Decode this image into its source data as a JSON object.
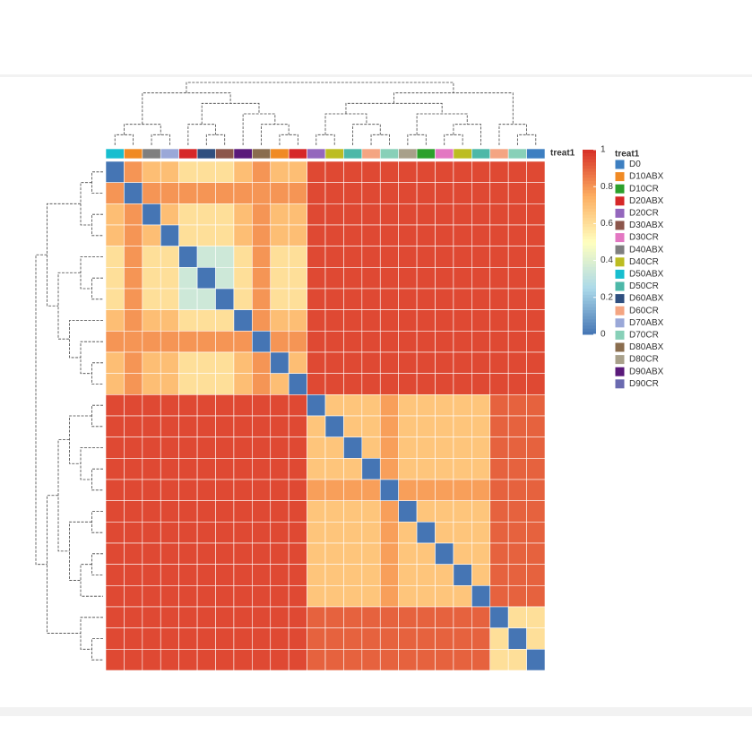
{
  "chart_data": {
    "type": "heatmap",
    "annotation_label": "treat1",
    "legend": {
      "title": "treat1",
      "items": [
        {
          "name": "D0",
          "color": "#3d7fc1"
        },
        {
          "name": "D10ABX",
          "color": "#f08a24"
        },
        {
          "name": "D10CR",
          "color": "#2ca02c"
        },
        {
          "name": "D20ABX",
          "color": "#d62728"
        },
        {
          "name": "D20CR",
          "color": "#9467bd"
        },
        {
          "name": "D30ABX",
          "color": "#8c564b"
        },
        {
          "name": "D30CR",
          "color": "#e377c2"
        },
        {
          "name": "D40ABX",
          "color": "#7f7f7f"
        },
        {
          "name": "D40CR",
          "color": "#bcbd22"
        },
        {
          "name": "D50ABX",
          "color": "#17becf"
        },
        {
          "name": "D50CR",
          "color": "#4db8a8"
        },
        {
          "name": "D60ABX",
          "color": "#2f4f7f"
        },
        {
          "name": "D60CR",
          "color": "#f4a582"
        },
        {
          "name": "D70ABX",
          "color": "#9aa8d8"
        },
        {
          "name": "D70CR",
          "color": "#88d0b8"
        },
        {
          "name": "D80ABX",
          "color": "#8a6d4e"
        },
        {
          "name": "D80CR",
          "color": "#a8a08a"
        },
        {
          "name": "D90ABX",
          "color": "#5a1a7a"
        },
        {
          "name": "D90CR",
          "color": "#6a6ab0"
        }
      ]
    },
    "annotation_groups": [
      9,
      1,
      7,
      13,
      3,
      11,
      5,
      17,
      15,
      1,
      3,
      4,
      8,
      10,
      12,
      14,
      16,
      2,
      6,
      8,
      10,
      12,
      14,
      0
    ],
    "zlim": [
      0,
      1
    ],
    "zticks": [
      0,
      0.2,
      0.4,
      0.6,
      0.8,
      1
    ],
    "colorscale": [
      [
        0,
        "#4575b4"
      ],
      [
        0.25,
        "#abd9e9"
      ],
      [
        0.5,
        "#ffffbf"
      ],
      [
        0.75,
        "#fdae61"
      ],
      [
        1,
        "#d73027"
      ]
    ],
    "values": [
      [
        0,
        0.8,
        0.7,
        0.7,
        0.6,
        0.6,
        0.6,
        0.7,
        0.8,
        0.7,
        0.7,
        0.95,
        0.95,
        0.95,
        0.95,
        0.95,
        0.95,
        0.95,
        0.95,
        0.95,
        0.95,
        0.95,
        0.95,
        0.95
      ],
      [
        0.8,
        0,
        0.8,
        0.8,
        0.8,
        0.8,
        0.8,
        0.8,
        0.8,
        0.8,
        0.8,
        0.95,
        0.95,
        0.95,
        0.95,
        0.95,
        0.95,
        0.95,
        0.95,
        0.95,
        0.95,
        0.95,
        0.95,
        0.95
      ],
      [
        0.7,
        0.8,
        0,
        0.7,
        0.6,
        0.6,
        0.6,
        0.7,
        0.8,
        0.7,
        0.7,
        0.95,
        0.95,
        0.95,
        0.95,
        0.95,
        0.95,
        0.95,
        0.95,
        0.95,
        0.95,
        0.95,
        0.95,
        0.95
      ],
      [
        0.7,
        0.8,
        0.7,
        0,
        0.6,
        0.6,
        0.6,
        0.7,
        0.8,
        0.7,
        0.7,
        0.95,
        0.95,
        0.95,
        0.95,
        0.95,
        0.95,
        0.95,
        0.95,
        0.95,
        0.95,
        0.95,
        0.95,
        0.95
      ],
      [
        0.6,
        0.8,
        0.6,
        0.6,
        0,
        0.35,
        0.35,
        0.6,
        0.8,
        0.6,
        0.6,
        0.95,
        0.95,
        0.95,
        0.95,
        0.95,
        0.95,
        0.95,
        0.95,
        0.95,
        0.95,
        0.95,
        0.95,
        0.95
      ],
      [
        0.6,
        0.8,
        0.6,
        0.6,
        0.35,
        0,
        0.35,
        0.6,
        0.8,
        0.6,
        0.6,
        0.95,
        0.95,
        0.95,
        0.95,
        0.95,
        0.95,
        0.95,
        0.95,
        0.95,
        0.95,
        0.95,
        0.95,
        0.95
      ],
      [
        0.6,
        0.8,
        0.6,
        0.6,
        0.35,
        0.35,
        0,
        0.6,
        0.8,
        0.6,
        0.6,
        0.95,
        0.95,
        0.95,
        0.95,
        0.95,
        0.95,
        0.95,
        0.95,
        0.95,
        0.95,
        0.95,
        0.95,
        0.95
      ],
      [
        0.7,
        0.8,
        0.7,
        0.7,
        0.6,
        0.6,
        0.6,
        0,
        0.8,
        0.7,
        0.7,
        0.95,
        0.95,
        0.95,
        0.95,
        0.95,
        0.95,
        0.95,
        0.95,
        0.95,
        0.95,
        0.95,
        0.95,
        0.95
      ],
      [
        0.8,
        0.8,
        0.8,
        0.8,
        0.8,
        0.8,
        0.8,
        0.8,
        0,
        0.8,
        0.8,
        0.95,
        0.95,
        0.95,
        0.95,
        0.95,
        0.95,
        0.95,
        0.95,
        0.95,
        0.95,
        0.95,
        0.95,
        0.95
      ],
      [
        0.7,
        0.8,
        0.7,
        0.7,
        0.6,
        0.6,
        0.6,
        0.7,
        0.8,
        0,
        0.7,
        0.95,
        0.95,
        0.95,
        0.95,
        0.95,
        0.95,
        0.95,
        0.95,
        0.95,
        0.95,
        0.95,
        0.95,
        0.95
      ],
      [
        0.7,
        0.8,
        0.7,
        0.7,
        0.6,
        0.6,
        0.6,
        0.7,
        0.8,
        0.7,
        0,
        0.95,
        0.95,
        0.95,
        0.95,
        0.95,
        0.95,
        0.95,
        0.95,
        0.95,
        0.95,
        0.95,
        0.95,
        0.95
      ],
      [
        0.95,
        0.95,
        0.95,
        0.95,
        0.95,
        0.95,
        0.95,
        0.95,
        0.95,
        0.95,
        0.95,
        0,
        0.68,
        0.68,
        0.68,
        0.78,
        0.68,
        0.68,
        0.68,
        0.68,
        0.68,
        0.9,
        0.9,
        0.9
      ],
      [
        0.95,
        0.95,
        0.95,
        0.95,
        0.95,
        0.95,
        0.95,
        0.95,
        0.95,
        0.95,
        0.95,
        0.68,
        0,
        0.68,
        0.68,
        0.78,
        0.68,
        0.68,
        0.68,
        0.68,
        0.68,
        0.9,
        0.9,
        0.9
      ],
      [
        0.95,
        0.95,
        0.95,
        0.95,
        0.95,
        0.95,
        0.95,
        0.95,
        0.95,
        0.95,
        0.95,
        0.68,
        0.68,
        0,
        0.68,
        0.78,
        0.68,
        0.68,
        0.68,
        0.68,
        0.68,
        0.9,
        0.9,
        0.9
      ],
      [
        0.95,
        0.95,
        0.95,
        0.95,
        0.95,
        0.95,
        0.95,
        0.95,
        0.95,
        0.95,
        0.95,
        0.68,
        0.68,
        0.68,
        0,
        0.78,
        0.68,
        0.68,
        0.68,
        0.68,
        0.68,
        0.9,
        0.9,
        0.9
      ],
      [
        0.95,
        0.95,
        0.95,
        0.95,
        0.95,
        0.95,
        0.95,
        0.95,
        0.95,
        0.95,
        0.95,
        0.78,
        0.78,
        0.78,
        0.78,
        0,
        0.78,
        0.78,
        0.78,
        0.78,
        0.78,
        0.9,
        0.9,
        0.9
      ],
      [
        0.95,
        0.95,
        0.95,
        0.95,
        0.95,
        0.95,
        0.95,
        0.95,
        0.95,
        0.95,
        0.95,
        0.68,
        0.68,
        0.68,
        0.68,
        0.78,
        0,
        0.68,
        0.68,
        0.68,
        0.68,
        0.9,
        0.9,
        0.9
      ],
      [
        0.95,
        0.95,
        0.95,
        0.95,
        0.95,
        0.95,
        0.95,
        0.95,
        0.95,
        0.95,
        0.95,
        0.68,
        0.68,
        0.68,
        0.68,
        0.78,
        0.68,
        0,
        0.68,
        0.68,
        0.68,
        0.9,
        0.9,
        0.9
      ],
      [
        0.95,
        0.95,
        0.95,
        0.95,
        0.95,
        0.95,
        0.95,
        0.95,
        0.95,
        0.95,
        0.95,
        0.68,
        0.68,
        0.68,
        0.68,
        0.78,
        0.68,
        0.68,
        0,
        0.68,
        0.68,
        0.9,
        0.9,
        0.9
      ],
      [
        0.95,
        0.95,
        0.95,
        0.95,
        0.95,
        0.95,
        0.95,
        0.95,
        0.95,
        0.95,
        0.95,
        0.68,
        0.68,
        0.68,
        0.68,
        0.78,
        0.68,
        0.68,
        0.68,
        0,
        0.68,
        0.9,
        0.9,
        0.9
      ],
      [
        0.95,
        0.95,
        0.95,
        0.95,
        0.95,
        0.95,
        0.95,
        0.95,
        0.95,
        0.95,
        0.95,
        0.68,
        0.68,
        0.68,
        0.68,
        0.78,
        0.68,
        0.68,
        0.68,
        0.68,
        0,
        0.9,
        0.9,
        0.9
      ],
      [
        0.95,
        0.95,
        0.95,
        0.95,
        0.95,
        0.95,
        0.95,
        0.95,
        0.95,
        0.95,
        0.95,
        0.9,
        0.9,
        0.9,
        0.9,
        0.9,
        0.9,
        0.9,
        0.9,
        0.9,
        0.9,
        0,
        0.6,
        0.6
      ],
      [
        0.95,
        0.95,
        0.95,
        0.95,
        0.95,
        0.95,
        0.95,
        0.95,
        0.95,
        0.95,
        0.95,
        0.9,
        0.9,
        0.9,
        0.9,
        0.9,
        0.9,
        0.9,
        0.9,
        0.9,
        0.9,
        0.6,
        0,
        0.6
      ],
      [
        0.95,
        0.95,
        0.95,
        0.95,
        0.95,
        0.95,
        0.95,
        0.95,
        0.95,
        0.95,
        0.95,
        0.9,
        0.9,
        0.9,
        0.9,
        0.9,
        0.9,
        0.9,
        0.9,
        0.9,
        0.9,
        0.6,
        0.6,
        0
      ]
    ]
  }
}
